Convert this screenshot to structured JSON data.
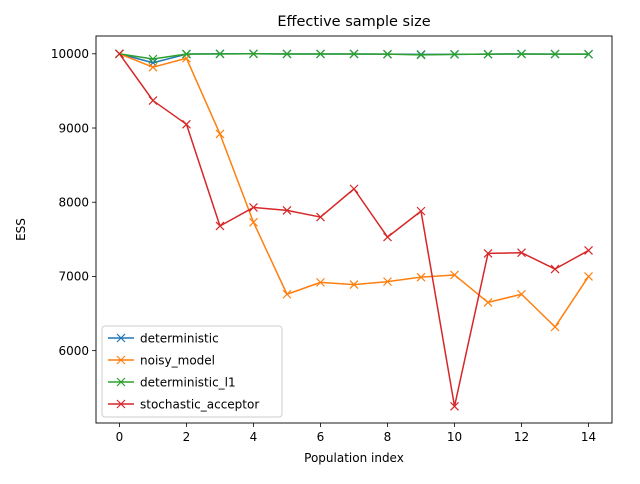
{
  "chart_data": {
    "type": "line",
    "title": "Effective sample size",
    "xlabel": "Population index",
    "ylabel": "ESS",
    "xlim": [
      -0.7,
      14.7
    ],
    "ylim": [
      5025,
      10240
    ],
    "xticks": [
      0,
      2,
      4,
      6,
      8,
      10,
      12,
      14
    ],
    "yticks": [
      6000,
      7000,
      8000,
      9000,
      10000
    ],
    "grid": false,
    "legend_position": "lower-left",
    "marker": "x",
    "x": [
      0,
      1,
      2,
      3,
      4,
      5,
      6,
      7,
      8,
      9,
      10,
      11,
      12,
      13,
      14
    ],
    "series": [
      {
        "name": "deterministic",
        "color": "#1f77b4",
        "values": [
          10000,
          9880,
          9995,
          10000,
          10000,
          9998,
          9998,
          9998,
          9995,
          9992,
          9993,
          9995,
          9998,
          9996,
          9995
        ]
      },
      {
        "name": "noisy_model",
        "color": "#ff7f0e",
        "values": [
          10000,
          9820,
          9940,
          8920,
          7730,
          6760,
          6920,
          6890,
          6930,
          6990,
          7020,
          6650,
          6760,
          6320,
          7000
        ]
      },
      {
        "name": "deterministic_l1",
        "color": "#2ca02c",
        "values": [
          10000,
          9930,
          9998,
          9998,
          10000,
          9998,
          9998,
          9998,
          9995,
          9985,
          9993,
          9995,
          9998,
          9996,
          9995
        ]
      },
      {
        "name": "stochastic_acceptor",
        "color": "#d62728",
        "values": [
          10000,
          9370,
          9050,
          7680,
          7930,
          7890,
          7800,
          8180,
          7530,
          7880,
          5250,
          7310,
          7320,
          7100,
          7350
        ]
      }
    ]
  }
}
